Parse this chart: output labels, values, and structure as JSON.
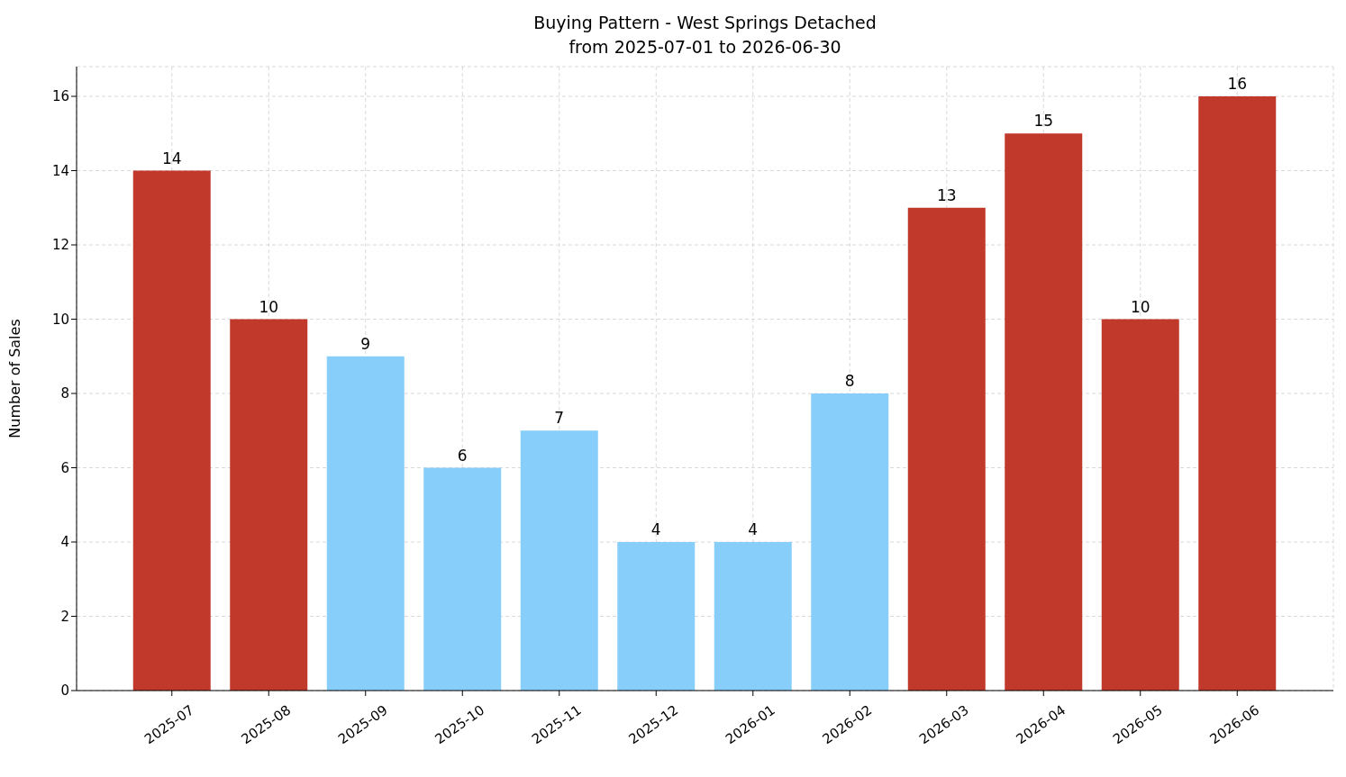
{
  "chart_data": {
    "type": "bar",
    "title": "Buying Pattern - West Springs Detached",
    "subtitle": "from 2025-07-01 to 2026-06-30",
    "ylabel": "Number of Sales",
    "categories": [
      "2025-07",
      "2025-08",
      "2025-09",
      "2025-10",
      "2025-11",
      "2025-12",
      "2026-01",
      "2026-02",
      "2026-03",
      "2026-04",
      "2026-05",
      "2026-06"
    ],
    "values": [
      14,
      10,
      9,
      6,
      7,
      4,
      4,
      8,
      13,
      15,
      10,
      16
    ],
    "colors": [
      "#c0392b",
      "#c0392b",
      "#87cefa",
      "#87cefa",
      "#87cefa",
      "#87cefa",
      "#87cefa",
      "#87cefa",
      "#c0392b",
      "#c0392b",
      "#c0392b",
      "#c0392b"
    ],
    "ylim": [
      0,
      16.8
    ],
    "yticks": [
      0,
      2,
      4,
      6,
      8,
      10,
      12,
      14,
      16
    ],
    "grid": true,
    "data_labels": true
  }
}
